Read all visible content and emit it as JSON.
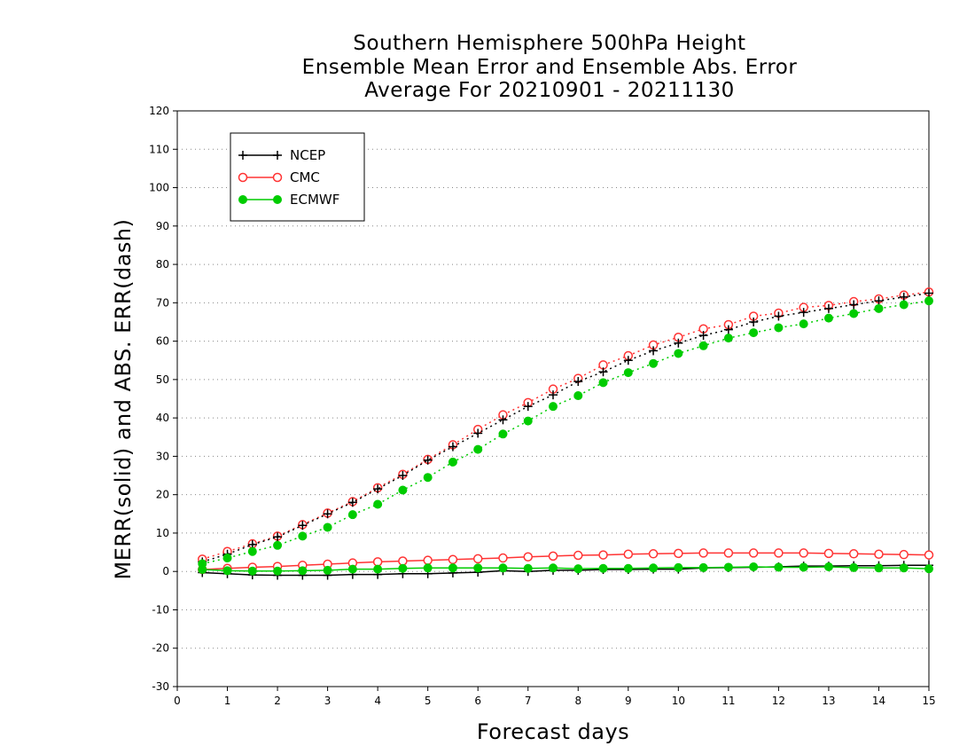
{
  "chart_data": {
    "type": "line",
    "title_lines": [
      "Southern Hemisphere 500hPa Height",
      "Ensemble Mean Error and Ensemble Abs. Error",
      "Average For 20210901 - 20211130"
    ],
    "xlabel": "Forecast days",
    "ylabel": "MERR(solid) and ABS. ERR(dash)",
    "xlim": [
      0,
      15
    ],
    "ylim": [
      -30,
      120
    ],
    "xticks": [
      0,
      1,
      2,
      3,
      4,
      5,
      6,
      7,
      8,
      9,
      10,
      11,
      12,
      13,
      14,
      15
    ],
    "yticks": [
      -30,
      -20,
      -10,
      0,
      10,
      20,
      30,
      40,
      50,
      60,
      70,
      80,
      90,
      100,
      110,
      120
    ],
    "grid": "horizontal dotted",
    "legend_position": "top-left",
    "x": [
      0.5,
      1,
      1.5,
      2,
      2.5,
      3,
      3.5,
      4,
      4.5,
      5,
      5.5,
      6,
      6.5,
      7,
      7.5,
      8,
      8.5,
      9,
      9.5,
      10,
      10.5,
      11,
      11.5,
      12,
      12.5,
      13,
      13.5,
      14,
      14.5,
      15
    ],
    "series": [
      {
        "name": "NCEP",
        "color": "#000000",
        "marker": "plus",
        "merr": [
          -0.3,
          -0.6,
          -0.9,
          -1.0,
          -1.0,
          -1.0,
          -0.8,
          -0.8,
          -0.6,
          -0.6,
          -0.4,
          -0.2,
          0.2,
          0.0,
          0.3,
          0.3,
          0.5,
          0.5,
          0.6,
          0.6,
          0.9,
          1.0,
          1.1,
          1.2,
          1.4,
          1.4,
          1.5,
          1.5,
          1.6,
          1.6
        ],
        "abs_err": [
          2.5,
          4.5,
          7.0,
          9.0,
          12.0,
          15.0,
          18.0,
          21.5,
          25.0,
          29.0,
          32.5,
          36.0,
          39.5,
          43.0,
          46.0,
          49.5,
          52.0,
          55.0,
          57.5,
          59.5,
          61.5,
          63.0,
          65.0,
          66.5,
          67.5,
          68.5,
          69.5,
          70.5,
          71.5,
          72.5
        ]
      },
      {
        "name": "CMC",
        "color": "#ff3333",
        "marker": "open-circle",
        "merr": [
          0.5,
          0.8,
          1.1,
          1.3,
          1.6,
          1.9,
          2.2,
          2.5,
          2.7,
          2.9,
          3.1,
          3.3,
          3.5,
          3.8,
          4.0,
          4.2,
          4.3,
          4.5,
          4.6,
          4.7,
          4.8,
          4.8,
          4.8,
          4.8,
          4.8,
          4.7,
          4.6,
          4.5,
          4.4,
          4.3
        ],
        "abs_err": [
          3.2,
          5.2,
          7.2,
          9.2,
          12.2,
          15.2,
          18.2,
          21.8,
          25.3,
          29.2,
          33.0,
          37.0,
          40.8,
          44.0,
          47.5,
          50.3,
          53.8,
          56.2,
          59.0,
          61.0,
          63.2,
          64.3,
          66.5,
          67.3,
          68.8,
          69.3,
          70.3,
          71.0,
          72.0,
          72.8
        ]
      },
      {
        "name": "ECMWF",
        "color": "#00cc00",
        "marker": "filled-circle",
        "merr": [
          0.5,
          0.2,
          0.1,
          0.1,
          0.2,
          0.3,
          0.6,
          0.6,
          0.8,
          0.9,
          0.9,
          0.9,
          0.9,
          0.8,
          0.9,
          0.7,
          0.8,
          0.8,
          0.9,
          1.0,
          1.0,
          1.1,
          1.2,
          1.1,
          1.1,
          1.2,
          1.0,
          0.9,
          0.9,
          0.7
        ],
        "abs_err": [
          2.0,
          3.5,
          5.2,
          6.8,
          9.2,
          11.5,
          14.8,
          17.5,
          21.2,
          24.5,
          28.5,
          31.8,
          35.8,
          39.2,
          43.0,
          45.8,
          49.2,
          51.8,
          54.2,
          56.8,
          58.8,
          60.8,
          62.2,
          63.5,
          64.5,
          66.0,
          67.2,
          68.5,
          69.5,
          70.5
        ]
      }
    ]
  }
}
